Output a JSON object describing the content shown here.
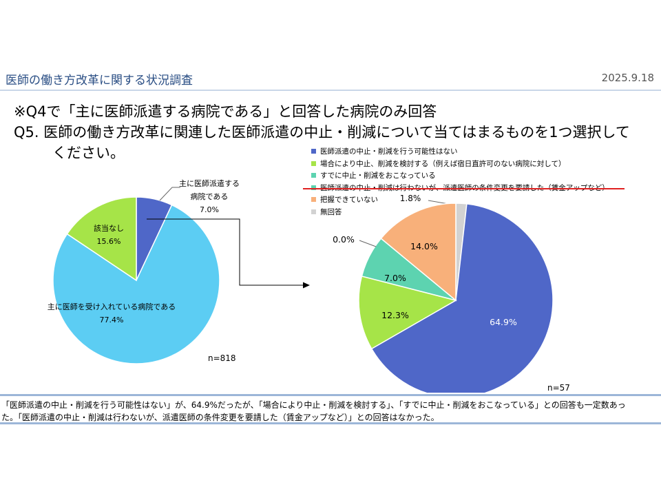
{
  "slide": {
    "title": "医師の働き方改革に関する状況調査",
    "date": "2025.9.18",
    "note": "※Q4で「主に医師派遣する病院である」と回答した病院のみ回答",
    "question_line1": "Q5.  医師の働き方改革に関連した医師派遣の中止・削減について当てはまるものを1つ選択して",
    "question_line2": "ください。"
  },
  "colors": {
    "navy": "#4f67c8",
    "sky": "#5ccdf3",
    "lime": "#a6e448",
    "teal": "#5dd3b0",
    "peach": "#f8b07a",
    "gray": "#d2d2d2",
    "title_text": "#2a4e84",
    "emphasis_red": "#e02020"
  },
  "legend": [
    {
      "label": "医師派遣の中止・削減を行う可能性はない",
      "color": "#4f67c8"
    },
    {
      "label": "場合により中止、削減を検討する（例えば宿日直許可のない病院に対して）",
      "color": "#a6e448"
    },
    {
      "label": "すでに中止・削減をおこなっている",
      "color": "#5dd3b0"
    },
    {
      "label": "医師派遣の中止・削減は行わないが、派遣医師の条件変更を要請した（賃金アップなど）",
      "color": "#5dd3b0"
    },
    {
      "label": "把握できていない",
      "color": "#f8b07a"
    },
    {
      "label": "無回答",
      "color": "#d2d2d2"
    }
  ],
  "chart_data": [
    {
      "type": "pie",
      "n_label": "n=818",
      "slices": [
        {
          "label_lines": [
            "主に医師派遣する",
            "病院である"
          ],
          "value": 7.0,
          "value_label": "7.0%",
          "color": "#4f67c8"
        },
        {
          "label_lines": [
            "主に医師を受け入れている病院である"
          ],
          "value": 77.4,
          "value_label": "77.4%",
          "color": "#5ccdf3"
        },
        {
          "label_lines": [
            "該当なし"
          ],
          "value": 15.6,
          "value_label": "15.6%",
          "color": "#a6e448"
        }
      ]
    },
    {
      "type": "pie",
      "n_label": "n=57",
      "slices": [
        {
          "value": 1.8,
          "value_label": "1.8%",
          "color": "#d2d2d2"
        },
        {
          "value": 64.9,
          "value_label": "64.9%",
          "color": "#4f67c8"
        },
        {
          "value": 12.3,
          "value_label": "12.3%",
          "color": "#a6e448"
        },
        {
          "value": 7.0,
          "value_label": "7.0%",
          "color": "#5dd3b0"
        },
        {
          "value": 0.0,
          "value_label": "0.0%",
          "color": "#5dd3b0"
        },
        {
          "value": 14.0,
          "value_label": "14.0%",
          "color": "#f8b07a"
        }
      ]
    }
  ],
  "footer": {
    "line1": "「医師派遣の中止・削減を行う可能性はない」が、64.9%だったが、「場合により中止・削減を検討する」、「すでに中止・削減をおこなっている」との回答も一定数あっ",
    "line2": "た。「医師派遣の中止・削減は行わないが、派遣医師の条件変更を要請した（賃金アップなど）」との回答はなかった。"
  }
}
